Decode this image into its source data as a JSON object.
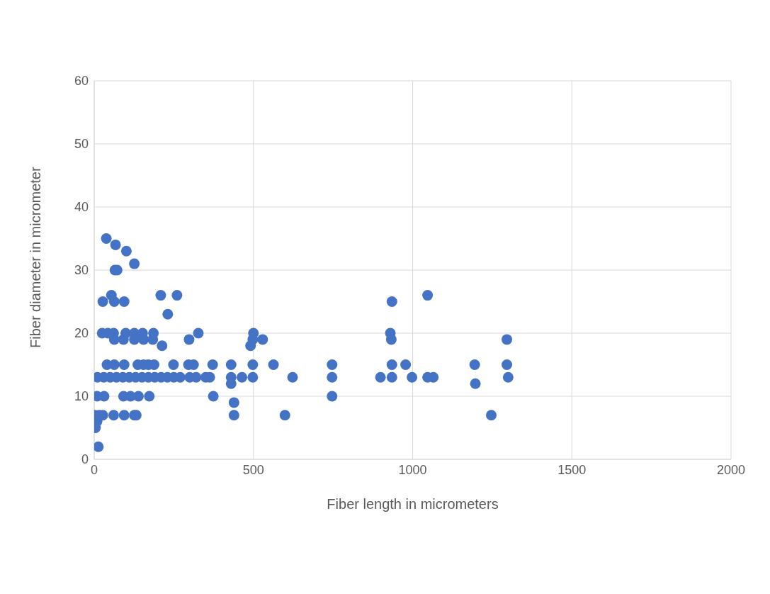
{
  "chart_data": {
    "type": "scatter",
    "xlabel": "Fiber length in micrometers",
    "ylabel": "Fiber diameter in micrometer",
    "x": [
      38,
      67,
      101,
      126,
      65,
      72,
      209,
      260,
      54,
      27,
      63,
      94,
      231,
      25,
      43,
      61,
      99,
      126,
      152,
      186,
      327,
      500,
      63,
      92,
      126,
      155,
      184,
      298,
      529,
      933,
      213,
      491,
      40,
      63,
      94,
      137,
      155,
      170,
      188,
      249,
      296,
      312,
      372,
      430,
      498,
      563,
      747,
      935,
      978,
      1195,
      1296,
      10,
      30,
      50,
      70,
      90,
      110,
      130,
      150,
      170,
      190,
      210,
      230,
      250,
      270,
      300,
      320,
      350,
      363,
      430,
      464,
      498,
      623,
      747,
      899,
      935,
      998,
      1047,
      1065,
      1300,
      430,
      1197,
      9,
      31,
      92,
      114,
      139,
      173,
      374,
      747,
      439,
      2,
      16,
      27,
      61,
      94,
      126,
      132,
      439,
      599,
      1247,
      9,
      4,
      13,
      935,
      1047,
      930,
      1296,
      498
    ],
    "values": [
      35,
      34,
      33,
      31,
      30,
      30,
      26,
      26,
      26,
      25,
      25,
      25,
      23,
      20,
      20,
      20,
      20,
      20,
      20,
      20,
      20,
      20,
      19,
      19,
      19,
      19,
      19,
      19,
      19,
      19,
      18,
      18,
      15,
      15,
      15,
      15,
      15,
      15,
      15,
      15,
      15,
      15,
      15,
      15,
      15,
      15,
      15,
      15,
      15,
      15,
      15,
      13,
      13,
      13,
      13,
      13,
      13,
      13,
      13,
      13,
      13,
      13,
      13,
      13,
      13,
      13,
      13,
      13,
      13,
      13,
      13,
      13,
      13,
      13,
      13,
      13,
      13,
      13,
      13,
      13,
      12,
      12,
      10,
      10,
      10,
      10,
      10,
      10,
      10,
      10,
      9,
      7,
      7,
      7,
      7,
      7,
      7,
      7,
      7,
      7,
      7,
      6,
      5,
      2,
      25,
      26,
      20,
      19,
      19
    ],
    "color": "#4472c4",
    "marker": "circle",
    "xlim": [
      0,
      2000
    ],
    "xticks": [
      0,
      500,
      1000,
      1500,
      2000
    ],
    "ylim": [
      0,
      60
    ],
    "yticks": [
      0,
      10,
      20,
      30,
      40,
      50,
      60
    ],
    "grid": true
  }
}
